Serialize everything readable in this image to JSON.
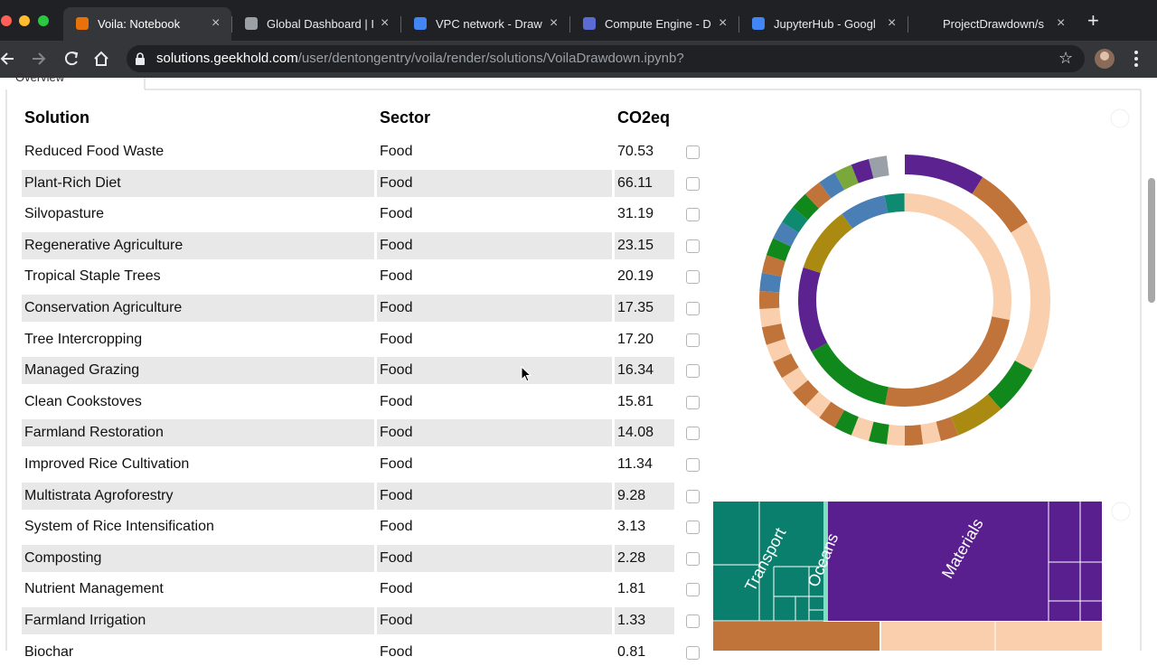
{
  "browser": {
    "tabs": [
      "Voila: Notebook",
      "Global Dashboard | I",
      "VPC network - Draw",
      "Compute Engine - D",
      "JupyterHub - Googl",
      "ProjectDrawdown/s"
    ],
    "url": {
      "host": "solutions.geekhold.com",
      "path": "/user/dentongentry/voila/render/solutions/VoilaDrawdown.ipynb?"
    }
  },
  "page": {
    "tab": "Overview",
    "table": {
      "headers": [
        "Solution",
        "Sector",
        "CO2eq"
      ],
      "rows": [
        [
          "Reduced Food Waste",
          "Food",
          "70.53"
        ],
        [
          "Plant-Rich Diet",
          "Food",
          "66.11"
        ],
        [
          "Silvopasture",
          "Food",
          "31.19"
        ],
        [
          "Regenerative Agriculture",
          "Food",
          "23.15"
        ],
        [
          "Tropical Staple Trees",
          "Food",
          "20.19"
        ],
        [
          "Conservation Agriculture",
          "Food",
          "17.35"
        ],
        [
          "Tree Intercropping",
          "Food",
          "17.20"
        ],
        [
          "Managed Grazing",
          "Food",
          "16.34"
        ],
        [
          "Clean Cookstoves",
          "Food",
          "15.81"
        ],
        [
          "Farmland Restoration",
          "Food",
          "14.08"
        ],
        [
          "Improved Rice Cultivation",
          "Food",
          "11.34"
        ],
        [
          "Multistrata Agroforestry",
          "Food",
          "9.28"
        ],
        [
          "System of Rice Intensification",
          "Food",
          "3.13"
        ],
        [
          "Composting",
          "Food",
          "2.28"
        ],
        [
          "Nutrient Management",
          "Food",
          "1.81"
        ],
        [
          "Farmland Irrigation",
          "Food",
          "1.33"
        ],
        [
          "Biochar",
          "Food",
          "0.81"
        ]
      ]
    },
    "treemap": {
      "labels": [
        "Transport",
        "Oceans",
        "Materials"
      ]
    }
  }
}
